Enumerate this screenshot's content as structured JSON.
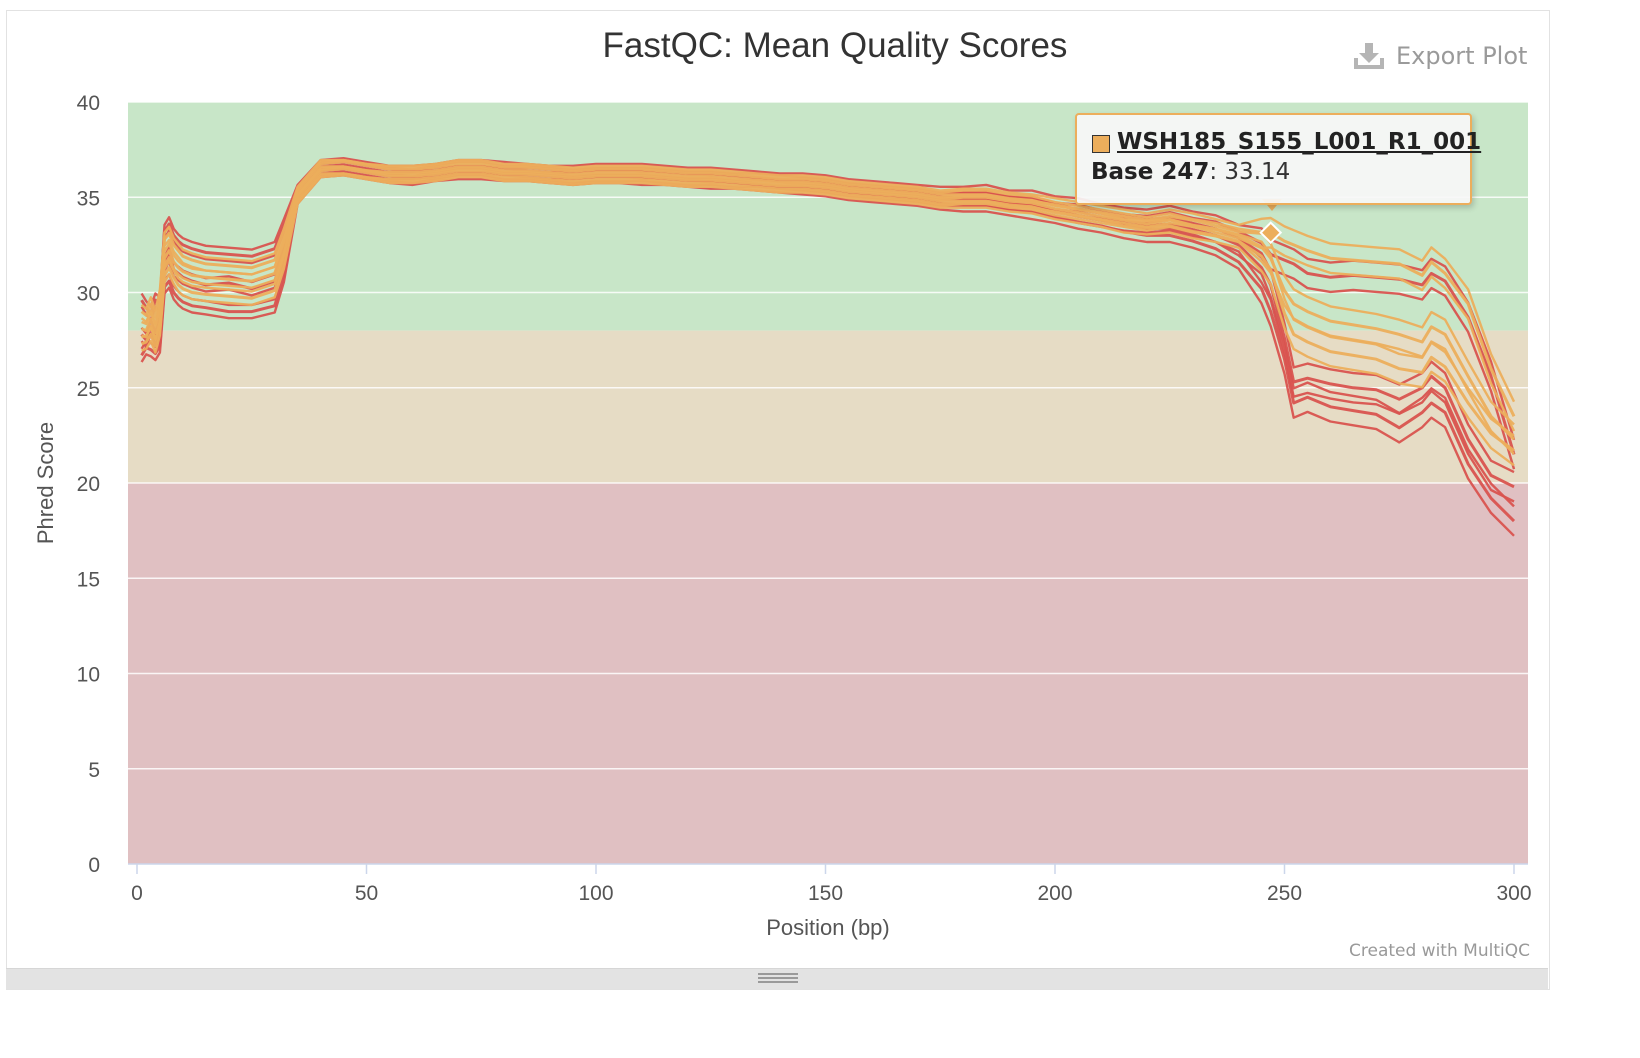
{
  "toolbar": {
    "export_label": "Export Plot",
    "export_icon": "download-icon"
  },
  "footer": {
    "credit": "Created with MultiQC"
  },
  "tooltip": {
    "sample": "WSH185_S155_L001_R1_001",
    "base_label": "Base 247",
    "value": "33.14",
    "swatch_color": "#ecae5c"
  },
  "colors": {
    "red_series": "#d9534f",
    "orange_series": "#ecae5c",
    "zone_good": "#c8e6c8",
    "zone_warn": "#e6dcc5",
    "zone_fail": "#e0c0c2"
  },
  "chart_data": {
    "type": "line",
    "title": "FastQC: Mean Quality Scores",
    "xlabel": "Position (bp)",
    "ylabel": "Phred Score",
    "xlim": [
      0,
      300
    ],
    "ylim": [
      0,
      40
    ],
    "xticks": [
      0,
      50,
      100,
      150,
      200,
      250,
      300
    ],
    "yticks": [
      0,
      5,
      10,
      15,
      20,
      25,
      30,
      35,
      40
    ],
    "grid": true,
    "zones": [
      {
        "from": 28,
        "to": 40,
        "color": "#c8e6c8"
      },
      {
        "from": 20,
        "to": 28,
        "color": "#e6dcc5"
      },
      {
        "from": 0,
        "to": 20,
        "color": "#e0c0c2"
      }
    ],
    "x": [
      1,
      2,
      3,
      4,
      5,
      6,
      7,
      8,
      9,
      10,
      12,
      15,
      20,
      25,
      30,
      32,
      35,
      40,
      45,
      50,
      55,
      60,
      65,
      70,
      75,
      80,
      85,
      90,
      95,
      100,
      105,
      110,
      115,
      120,
      125,
      130,
      135,
      140,
      145,
      150,
      155,
      160,
      165,
      170,
      175,
      180,
      185,
      190,
      195,
      200,
      205,
      210,
      215,
      220,
      225,
      230,
      235,
      240,
      245,
      247,
      250,
      252,
      255,
      260,
      265,
      270,
      275,
      280,
      282,
      285,
      290,
      295,
      300
    ],
    "representative_series": [
      {
        "name": "red, upper",
        "color": "#d9534f",
        "values": [
          29.6,
          29.2,
          28.9,
          29.6,
          29.4,
          33.2,
          33.6,
          33.0,
          32.7,
          32.5,
          32.3,
          32.1,
          32.0,
          31.9,
          32.3,
          33.5,
          35.3,
          36.6,
          36.7,
          36.5,
          36.3,
          36.3,
          36.4,
          36.6,
          36.6,
          36.5,
          36.4,
          36.3,
          36.3,
          36.4,
          36.4,
          36.4,
          36.3,
          36.2,
          36.2,
          36.1,
          36.0,
          35.9,
          35.9,
          35.8,
          35.6,
          35.5,
          35.4,
          35.3,
          35.2,
          35.2,
          35.3,
          35.0,
          35.0,
          34.7,
          34.6,
          34.3,
          34.1,
          34.0,
          34.2,
          33.9,
          33.7,
          33.2,
          32.6,
          32.0,
          31.7,
          31.5,
          31.0,
          30.8,
          30.9,
          30.8,
          30.7,
          30.4,
          31.0,
          30.6,
          28.7,
          25.6,
          21.5
        ]
      },
      {
        "name": "red, lower",
        "color": "#d9534f",
        "values": [
          26.7,
          27.1,
          27.0,
          26.8,
          27.2,
          30.3,
          30.6,
          30.0,
          29.7,
          29.5,
          29.3,
          29.2,
          29.0,
          29.0,
          29.3,
          30.9,
          35.0,
          36.4,
          36.5,
          36.3,
          36.1,
          36.0,
          36.2,
          36.3,
          36.3,
          36.2,
          36.2,
          36.1,
          36.0,
          36.1,
          36.1,
          36.0,
          36.0,
          35.9,
          35.8,
          35.8,
          35.7,
          35.6,
          35.5,
          35.4,
          35.2,
          35.1,
          35.0,
          34.9,
          34.7,
          34.6,
          34.6,
          34.4,
          34.2,
          34.0,
          33.7,
          33.5,
          33.2,
          33.0,
          33.0,
          32.7,
          32.3,
          31.6,
          30.2,
          29.0,
          26.5,
          24.2,
          24.5,
          24.0,
          23.8,
          23.6,
          22.9,
          23.7,
          24.2,
          23.7,
          21.0,
          19.2,
          18.0
        ]
      },
      {
        "name": "red, mid",
        "color": "#d9534f",
        "values": [
          27.8,
          27.5,
          28.2,
          27.6,
          28.4,
          31.5,
          32.0,
          31.2,
          31.0,
          30.8,
          30.6,
          30.4,
          30.5,
          30.2,
          30.6,
          32.0,
          35.1,
          36.5,
          36.6,
          36.4,
          36.2,
          36.1,
          36.3,
          36.5,
          36.5,
          36.3,
          36.3,
          36.2,
          36.1,
          36.2,
          36.2,
          36.2,
          36.1,
          36.0,
          36.0,
          35.9,
          35.9,
          35.8,
          35.7,
          35.6,
          35.4,
          35.3,
          35.2,
          35.1,
          34.9,
          34.9,
          34.9,
          34.7,
          34.6,
          34.3,
          34.0,
          33.8,
          33.6,
          33.5,
          33.6,
          33.3,
          33.0,
          32.5,
          31.3,
          30.4,
          27.6,
          25.3,
          25.5,
          25.2,
          25.0,
          24.9,
          24.4,
          25.0,
          25.6,
          25.0,
          22.3,
          20.4,
          19.8
        ]
      },
      {
        "name": "orange, upper",
        "color": "#ecae5c",
        "values": [
          29.0,
          28.8,
          29.4,
          28.7,
          29.8,
          32.8,
          33.1,
          32.5,
          32.2,
          31.9,
          31.7,
          31.5,
          31.4,
          31.3,
          31.7,
          33.0,
          35.2,
          36.6,
          36.6,
          36.4,
          36.3,
          36.3,
          36.4,
          36.6,
          36.6,
          36.4,
          36.4,
          36.3,
          36.2,
          36.3,
          36.3,
          36.3,
          36.2,
          36.1,
          36.1,
          36.0,
          35.9,
          35.8,
          35.8,
          35.7,
          35.5,
          35.4,
          35.3,
          35.2,
          35.0,
          35.1,
          35.1,
          34.9,
          34.8,
          34.6,
          34.4,
          34.2,
          34.0,
          33.8,
          34.0,
          33.8,
          33.5,
          33.2,
          33.1,
          33.14,
          32.7,
          32.5,
          32.2,
          31.8,
          31.7,
          31.6,
          31.5,
          30.9,
          31.6,
          31.0,
          29.4,
          26.0,
          23.5
        ]
      },
      {
        "name": "orange, mid",
        "color": "#ecae5c",
        "values": [
          28.1,
          28.0,
          28.6,
          27.9,
          28.8,
          31.8,
          32.2,
          31.6,
          31.3,
          31.1,
          30.9,
          30.8,
          30.7,
          30.6,
          31.0,
          32.4,
          35.1,
          36.5,
          36.6,
          36.4,
          36.2,
          36.2,
          36.3,
          36.5,
          36.5,
          36.3,
          36.3,
          36.2,
          36.1,
          36.2,
          36.2,
          36.2,
          36.1,
          36.0,
          36.0,
          35.9,
          35.8,
          35.7,
          35.7,
          35.6,
          35.4,
          35.3,
          35.2,
          35.1,
          34.9,
          35.0,
          35.0,
          34.8,
          34.7,
          34.4,
          34.2,
          34.0,
          33.8,
          33.6,
          33.8,
          33.5,
          33.3,
          33.0,
          32.4,
          31.8,
          30.1,
          29.4,
          29.0,
          28.5,
          28.3,
          28.1,
          27.8,
          27.4,
          28.2,
          27.8,
          25.6,
          23.5,
          22.3
        ]
      },
      {
        "name": "orange, lower",
        "color": "#ecae5c",
        "values": [
          27.3,
          27.4,
          27.8,
          27.2,
          28.1,
          30.9,
          31.3,
          30.8,
          30.4,
          30.2,
          30.0,
          29.9,
          29.8,
          29.7,
          30.1,
          31.6,
          35.0,
          36.4,
          36.5,
          36.3,
          36.1,
          36.1,
          36.2,
          36.4,
          36.4,
          36.2,
          36.2,
          36.1,
          36.0,
          36.1,
          36.1,
          36.1,
          36.0,
          35.9,
          35.9,
          35.8,
          35.7,
          35.6,
          35.6,
          35.5,
          35.3,
          35.2,
          35.1,
          35.0,
          34.8,
          34.8,
          34.8,
          34.6,
          34.5,
          34.2,
          34.0,
          33.8,
          33.5,
          33.4,
          33.5,
          33.2,
          33.0,
          32.7,
          31.9,
          31.2,
          28.9,
          27.8,
          27.4,
          26.9,
          26.7,
          26.5,
          26.0,
          25.8,
          26.6,
          26.1,
          24.2,
          22.6,
          21.7
        ]
      }
    ]
  }
}
